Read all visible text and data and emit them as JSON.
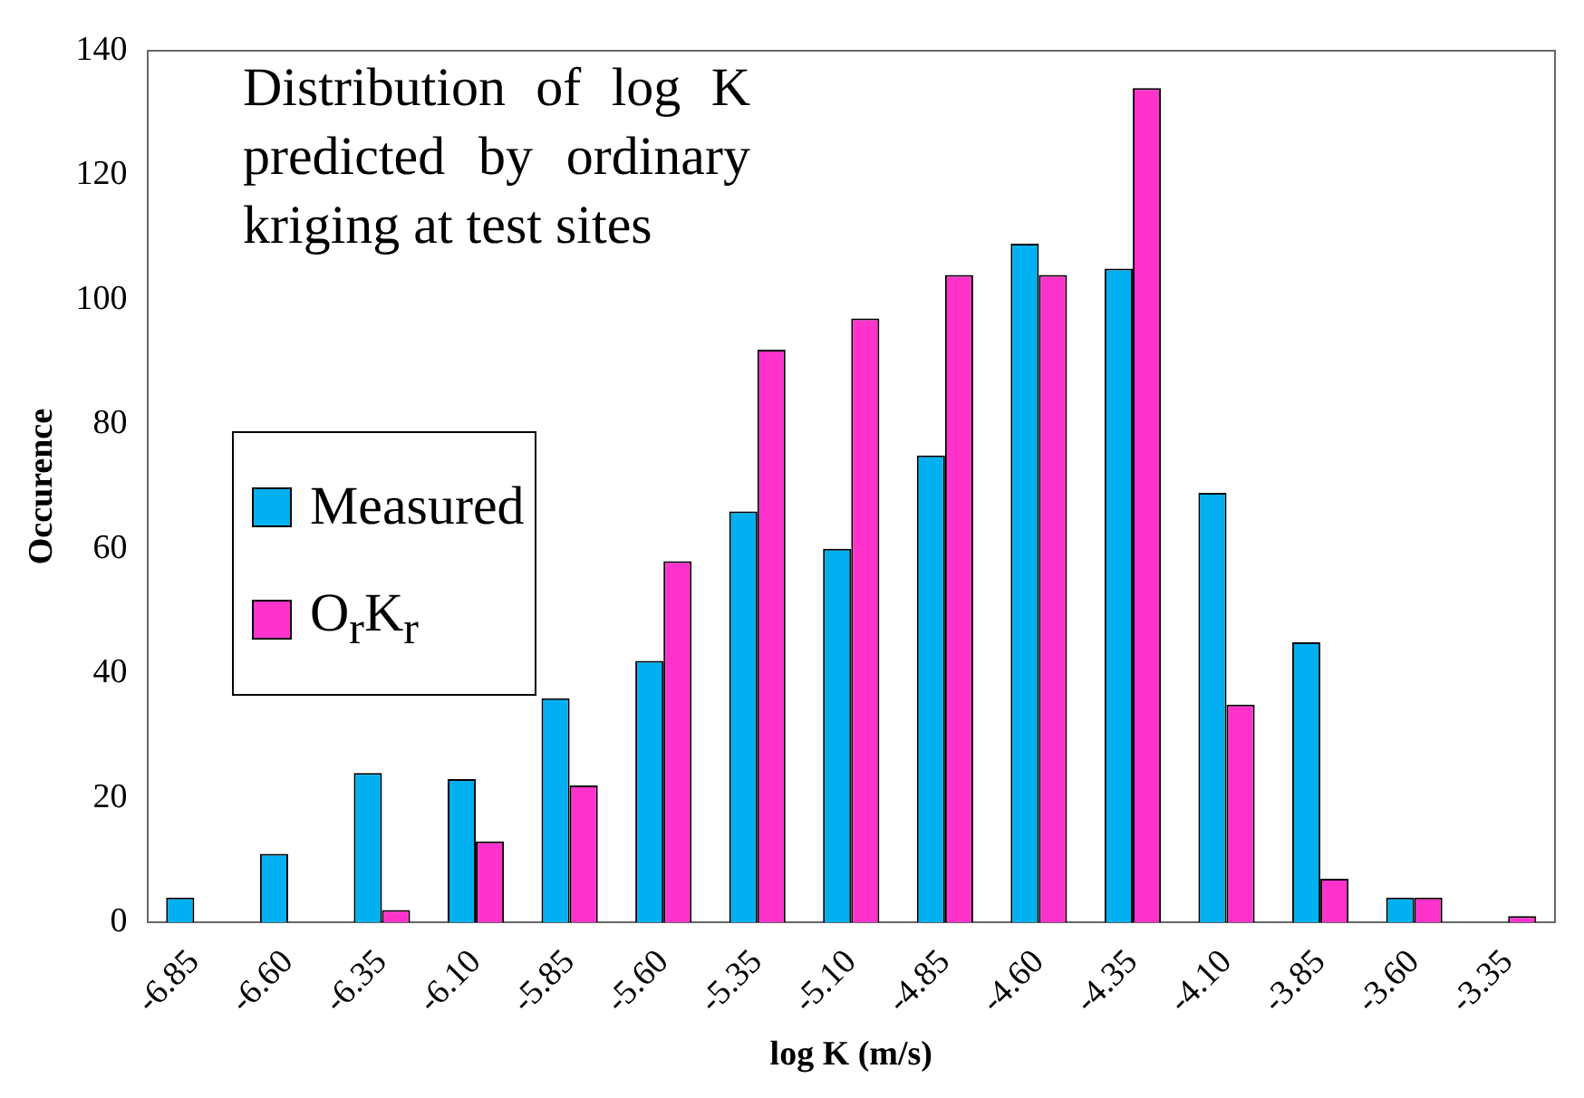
{
  "chart_data": {
    "type": "bar",
    "xlabel": "log K (m/s)",
    "ylabel": "Occurence",
    "annotations": [
      "Distribution of log K predicted by ordinary kriging at test sites"
    ],
    "categories": [
      "-6.85",
      "-6.60",
      "-6.35",
      "-6.10",
      "-5.85",
      "-5.60",
      "-5.35",
      "-5.10",
      "-4.85",
      "-4.60",
      "-4.35",
      "-4.10",
      "-3.85",
      "-3.60",
      "-3.35"
    ],
    "series": [
      {
        "name": "Measured",
        "color": "#00b0f0",
        "values": [
          4,
          11,
          24,
          23,
          36,
          42,
          66,
          60,
          75,
          109,
          105,
          69,
          45,
          4,
          0
        ]
      },
      {
        "name": "O$_{r}$K$_{r}$",
        "color": "#ff33cc",
        "values": [
          0,
          0,
          2,
          13,
          22,
          58,
          92,
          97,
          104,
          104,
          134,
          35,
          7,
          4,
          1
        ]
      }
    ],
    "ylim": [
      0,
      140
    ],
    "yticks": [
      0,
      20,
      40,
      60,
      80,
      100,
      120,
      140
    ],
    "grid": false,
    "legend": "left"
  }
}
